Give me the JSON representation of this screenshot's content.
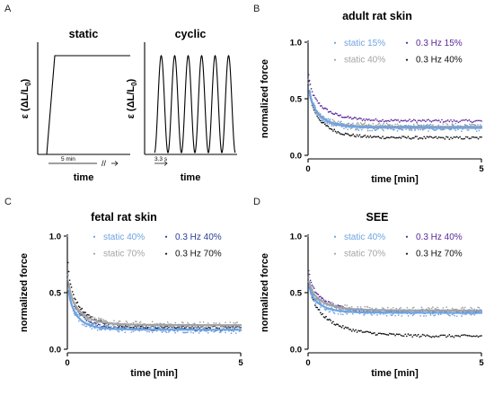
{
  "panels": {
    "A": {
      "letter": "A",
      "static_title": "static",
      "cyclic_title": "cyclic",
      "ylabel_prefix": "ε (ΔL/L",
      "ylabel_sub": "0",
      "ylabel_suffix": ")",
      "xlabel": "time",
      "static_annotation": "5 min",
      "cyclic_annotation": "3.3 s",
      "cyclic_cycles": 6
    }
  },
  "chart_data": [
    {
      "panel": "B",
      "type": "scatter",
      "title": "adult rat skin",
      "xlabel": "time [min]",
      "ylabel": "normalized force",
      "xlim": [
        0,
        5
      ],
      "ylim": [
        0,
        1
      ],
      "xticks": [
        "0",
        "5"
      ],
      "yticks": [
        "0.0",
        "0.5",
        "1.0"
      ],
      "legend_placement": "top-right",
      "series": [
        {
          "name": "static 15%",
          "color": "#6fa3e0",
          "fit": true,
          "plateau": 0.24,
          "amp": 0.5,
          "shape": 0.35
        },
        {
          "name": "0.3 Hz 15%",
          "color": "#5a2a9a",
          "fit": false,
          "plateau": 0.3,
          "amp": 0.5,
          "shape": 0.5
        },
        {
          "name": "static 40%",
          "color": "#a3a3a3",
          "fit": true,
          "plateau": 0.25,
          "amp": 0.5,
          "shape": 0.32
        },
        {
          "name": "0.3 Hz 40%",
          "color": "#111111",
          "fit": false,
          "plateau": 0.15,
          "amp": 0.6,
          "shape": 0.45
        }
      ]
    },
    {
      "panel": "C",
      "type": "scatter",
      "title": "fetal rat skin",
      "xlabel": "time [min]",
      "ylabel": "normalized force",
      "xlim": [
        0,
        5
      ],
      "ylim": [
        0,
        1
      ],
      "xticks": [
        "0",
        "5"
      ],
      "yticks": [
        "0.0",
        "0.5",
        "1.0"
      ],
      "legend_placement": "top-right",
      "series": [
        {
          "name": "static 40%",
          "color": "#6fa3e0",
          "fit": true,
          "plateau": 0.17,
          "amp": 0.55,
          "shape": 0.3
        },
        {
          "name": "0.3 Hz 40%",
          "color": "#2b3d9a",
          "fit": false,
          "plateau": 0.17,
          "amp": 0.6,
          "shape": 0.4
        },
        {
          "name": "static 70%",
          "color": "#a3a3a3",
          "fit": true,
          "plateau": 0.21,
          "amp": 0.55,
          "shape": 0.38
        },
        {
          "name": "0.3 Hz 70%",
          "color": "#111111",
          "fit": false,
          "plateau": 0.19,
          "amp": 0.7,
          "shape": 0.45
        }
      ]
    },
    {
      "panel": "D",
      "type": "scatter",
      "title": "SEE",
      "xlabel": "time [min]",
      "ylabel": "normalized force",
      "xlim": [
        0,
        5
      ],
      "ylim": [
        0,
        1
      ],
      "xticks": [
        "0",
        "5"
      ],
      "yticks": [
        "0.0",
        "0.5",
        "1.0"
      ],
      "legend_placement": "top-right",
      "series": [
        {
          "name": "static 40%",
          "color": "#6fa3e0",
          "fit": true,
          "plateau": 0.32,
          "amp": 0.35,
          "shape": 0.35
        },
        {
          "name": "0.3 Hz 40%",
          "color": "#5a2a9a",
          "fit": false,
          "plateau": 0.33,
          "amp": 0.45,
          "shape": 0.5
        },
        {
          "name": "static 70%",
          "color": "#a3a3a3",
          "fit": true,
          "plateau": 0.34,
          "amp": 0.35,
          "shape": 0.45
        },
        {
          "name": "0.3 Hz 70%",
          "color": "#111111",
          "fit": false,
          "plateau": 0.11,
          "amp": 0.6,
          "shape": 0.7
        }
      ]
    }
  ]
}
